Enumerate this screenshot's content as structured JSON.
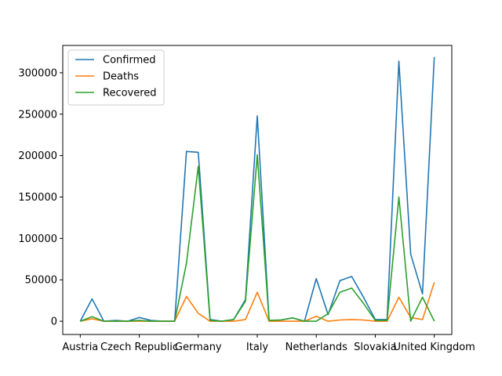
{
  "chart_data": {
    "type": "line",
    "title": "",
    "xlabel": "",
    "ylabel": "",
    "ylim": [
      -16000,
      333000
    ],
    "grid": false,
    "legend_position": "top-left",
    "x_ticks": [
      {
        "index": 0,
        "label": "Austria"
      },
      {
        "index": 5,
        "label": "Czech Republic"
      },
      {
        "index": 10,
        "label": "Germany"
      },
      {
        "index": 15,
        "label": "Italy"
      },
      {
        "index": 20,
        "label": "Netherlands"
      },
      {
        "index": 25,
        "label": "Slovakia"
      },
      {
        "index": 30,
        "label": "United Kingdom"
      }
    ],
    "y_ticks": [
      0,
      50000,
      100000,
      150000,
      200000,
      250000,
      300000
    ],
    "y_tick_labels": [
      "0",
      "50000",
      "100000",
      "150000",
      "200000",
      "250000",
      "300000"
    ],
    "series": [
      {
        "name": "Confirmed",
        "color": "#1f77b4",
        "values": [
          0,
          27000,
          0,
          1000,
          0,
          4500,
          1000,
          0,
          0,
          205000,
          204000,
          2000,
          0,
          2000,
          26000,
          248000,
          1000,
          1500,
          4000,
          0,
          51500,
          8000,
          49000,
          54000,
          29000,
          2000,
          2000,
          314000,
          81000,
          33000,
          319000
        ]
      },
      {
        "name": "Deaths",
        "color": "#ff7f0e",
        "values": [
          0,
          3000,
          0,
          0,
          0,
          0,
          0,
          0,
          0,
          30000,
          9500,
          0,
          0,
          0,
          2000,
          35000,
          0,
          0,
          0,
          0,
          6000,
          0,
          1500,
          2000,
          1500,
          0,
          0,
          29000,
          4500,
          2000,
          47000
        ]
      },
      {
        "name": "Recovered",
        "color": "#2ca02c",
        "values": [
          0,
          5500,
          0,
          0,
          0,
          1000,
          0,
          0,
          0,
          70000,
          187000,
          1000,
          0,
          2000,
          24000,
          201000,
          1000,
          1500,
          4000,
          0,
          0,
          9000,
          35000,
          40000,
          21500,
          1000,
          1000,
          150000,
          0,
          29000,
          0
        ]
      }
    ]
  }
}
